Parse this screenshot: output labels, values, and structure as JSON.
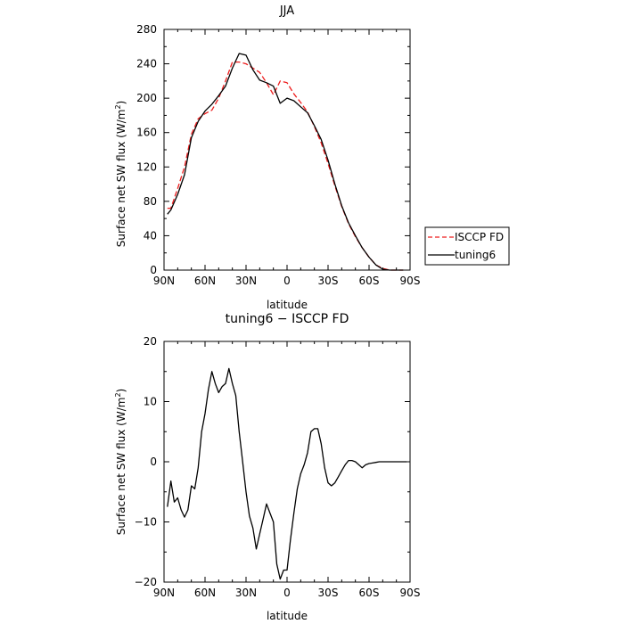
{
  "chart_data": [
    {
      "type": "line",
      "title": "JJA",
      "xlabel": "latitude",
      "ylabel": "Surface net SW flux (W/m²)",
      "ylabel_main": "Surface net SW flux (W/m",
      "ylabel_sup": "2",
      "ylabel_end": ")",
      "xlim": [
        90,
        -90
      ],
      "ylim": [
        0,
        280
      ],
      "xticks": [
        90,
        60,
        30,
        0,
        -30,
        -60,
        -90
      ],
      "xtick_labels": [
        "90N",
        "60N",
        "30N",
        "0",
        "30S",
        "60S",
        "90S"
      ],
      "yticks": [
        0,
        40,
        80,
        120,
        160,
        200,
        240,
        280
      ],
      "ytick_labels": [
        "0",
        "40",
        "80",
        "120",
        "160",
        "200",
        "240",
        "280"
      ],
      "grid": false,
      "legend_position": "right",
      "series": [
        {
          "name": "ISCCP FD",
          "color": "#ee1c1c",
          "dash": "dashed",
          "x": [
            87.5,
            85,
            80,
            75,
            70,
            65,
            60,
            55,
            50,
            45,
            40,
            35,
            30,
            25,
            20,
            15,
            10,
            5,
            0,
            -5,
            -10,
            -15,
            -20,
            -25,
            -30,
            -35,
            -40,
            -45,
            -50,
            -55,
            -60,
            -65,
            -70,
            -75,
            -80,
            -85
          ],
          "y": [
            72,
            72,
            95,
            120,
            158,
            176,
            182,
            186,
            200,
            220,
            242,
            242,
            240,
            235,
            230,
            218,
            204,
            220,
            218,
            205,
            195,
            184,
            167,
            148,
            124,
            98,
            74,
            54,
            39,
            26,
            15,
            6,
            2,
            0,
            0,
            0
          ]
        },
        {
          "name": "tuning6",
          "color": "#000000",
          "dash": "solid",
          "x": [
            87.5,
            85,
            80,
            75,
            70,
            65,
            60,
            55,
            50,
            45,
            40,
            35,
            30,
            25,
            20,
            15,
            10,
            5,
            0,
            -5,
            -10,
            -15,
            -20,
            -25,
            -30,
            -35,
            -40,
            -45,
            -50,
            -55,
            -60,
            -65,
            -70,
            -75,
            -80,
            -85
          ],
          "y": [
            65,
            70,
            88,
            111,
            154,
            173,
            185,
            193,
            203,
            214,
            235,
            252,
            250,
            233,
            221,
            218,
            214,
            194,
            200,
            197,
            190,
            183,
            168,
            152,
            128,
            100,
            75,
            55,
            40,
            26,
            15,
            6,
            1,
            0,
            0,
            0
          ]
        }
      ]
    },
    {
      "type": "line",
      "title": "tuning6 − ISCCP FD",
      "xlabel": "latitude",
      "ylabel": "Surface net SW flux (W/m²)",
      "ylabel_main": "Surface net SW flux (W/m",
      "ylabel_sup": "2",
      "ylabel_end": ")",
      "xlim": [
        90,
        -90
      ],
      "ylim": [
        -20,
        20
      ],
      "xticks": [
        90,
        60,
        30,
        0,
        -30,
        -60,
        -90
      ],
      "xtick_labels": [
        "90N",
        "60N",
        "30N",
        "0",
        "30S",
        "60S",
        "90S"
      ],
      "yticks": [
        -20,
        -10,
        0,
        10,
        20
      ],
      "ytick_labels": [
        "−20",
        "−10",
        "0",
        "10",
        "20"
      ],
      "grid": false,
      "series": [
        {
          "color": "#000000",
          "dash": "solid",
          "x": [
            87.5,
            85,
            82.5,
            80,
            77.5,
            75,
            72.5,
            70,
            67.5,
            65,
            62.5,
            60,
            57.5,
            55,
            52.5,
            50,
            47.5,
            45,
            42.5,
            40,
            37.5,
            35,
            32.5,
            30,
            27.5,
            25,
            22.5,
            20,
            17.5,
            15,
            12.5,
            10,
            7.5,
            5,
            2.5,
            0,
            -2.5,
            -5,
            -7.5,
            -10,
            -12.5,
            -15,
            -17.5,
            -20,
            -22.5,
            -25,
            -27.5,
            -30,
            -32.5,
            -35,
            -37.5,
            -40,
            -42.5,
            -45,
            -47.5,
            -50,
            -52.5,
            -55,
            -57.5,
            -60,
            -62.5,
            -65,
            -67.5,
            -70,
            -72.5,
            -75,
            -77.5,
            -80,
            -82.5,
            -85,
            -87.5
          ],
          "y": [
            -7.5,
            -3.2,
            -6.7,
            -6,
            -8,
            -9.2,
            -8,
            -4,
            -4.5,
            -1,
            5,
            8,
            12,
            15,
            13,
            11.5,
            12.5,
            13,
            15.5,
            13,
            11,
            5,
            0,
            -5,
            -9,
            -11,
            -14.5,
            -12,
            -9.5,
            -7,
            -8.5,
            -10,
            -17,
            -19.5,
            -18,
            -18,
            -13,
            -8.5,
            -4.5,
            -2,
            -0.5,
            1.5,
            5,
            5.5,
            5.5,
            3,
            -1,
            -3.5,
            -4,
            -3.5,
            -2.5,
            -1.5,
            -0.5,
            0.2,
            0.2,
            0,
            -0.5,
            -1,
            -0.5,
            -0.3,
            -0.2,
            -0.1,
            0,
            0,
            0,
            0,
            0,
            0,
            0,
            0,
            0
          ]
        }
      ]
    }
  ]
}
